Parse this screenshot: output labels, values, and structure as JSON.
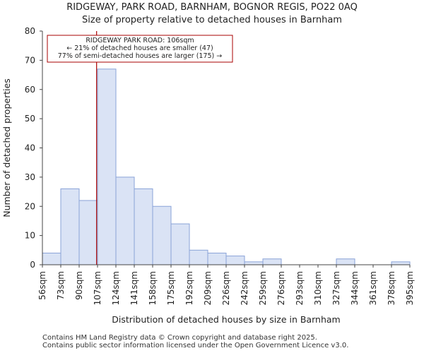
{
  "chart_data": {
    "type": "bar",
    "title_line1": "RIDGEWAY, PARK ROAD, BARNHAM, BOGNOR REGIS, PO22 0AQ",
    "title_line2": "Size of property relative to detached houses in Barnham",
    "xlabel": "Distribution of detached houses by size in Barnham",
    "ylabel": "Number of detached properties",
    "bin_edges": [
      56,
      73,
      90,
      107,
      124,
      141,
      158,
      175,
      192,
      209,
      226,
      242,
      259,
      276,
      293,
      310,
      327,
      344,
      361,
      378,
      395
    ],
    "tick_labels": [
      "56sqm",
      "73sqm",
      "90sqm",
      "107sqm",
      "124sqm",
      "141sqm",
      "158sqm",
      "175sqm",
      "192sqm",
      "209sqm",
      "226sqm",
      "242sqm",
      "259sqm",
      "276sqm",
      "293sqm",
      "310sqm",
      "327sqm",
      "344sqm",
      "361sqm",
      "378sqm",
      "395sqm"
    ],
    "values": [
      4,
      26,
      22,
      67,
      30,
      26,
      20,
      14,
      5,
      4,
      3,
      1,
      2,
      0,
      0,
      0,
      2,
      0,
      0,
      1
    ],
    "ylim": [
      0,
      80
    ],
    "yticks": [
      0,
      10,
      20,
      30,
      40,
      50,
      60,
      70,
      80
    ],
    "marker_value": 106,
    "annotation": {
      "line1": "RIDGEWAY PARK ROAD: 106sqm",
      "line2": "← 21% of detached houses are smaller (47)",
      "line3": "77% of semi-detached houses are larger (175) →"
    },
    "colors": {
      "bar_fill": "#dae3f5",
      "bar_stroke": "#8aa3d8",
      "marker": "#aa0000",
      "axis": "#444444"
    }
  },
  "footer": {
    "line1": "Contains HM Land Registry data © Crown copyright and database right 2025.",
    "line2": "Contains public sector information licensed under the Open Government Licence v3.0."
  }
}
